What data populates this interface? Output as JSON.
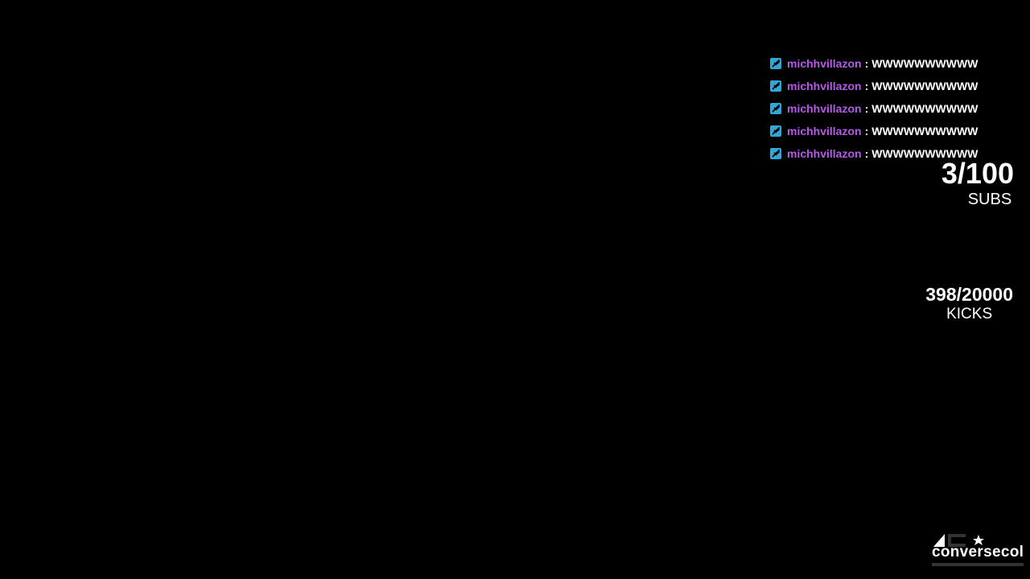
{
  "chat": {
    "messages": [
      {
        "user": "michhvillazon",
        "text": "WWWWWWWWWW",
        "badge": "moderator-sword-icon"
      },
      {
        "user": "michhvillazon",
        "text": "WWWWWWWWWW",
        "badge": "moderator-sword-icon"
      },
      {
        "user": "michhvillazon",
        "text": "WWWWWWWWWW",
        "badge": "moderator-sword-icon"
      },
      {
        "user": "michhvillazon",
        "text": "WWWWWWWWWW",
        "badge": "moderator-sword-icon"
      },
      {
        "user": "michhvillazon",
        "text": "WWWWWWWWWW",
        "badge": "moderator-sword-icon"
      }
    ],
    "separator": ":",
    "user_color": "#b45ae6",
    "badge_color": "#2ea8d8"
  },
  "subs_goal": {
    "value": "3/100",
    "label": "SUBS"
  },
  "kicks_goal": {
    "value": "398/20000",
    "label": "KICKS"
  },
  "logo": {
    "text": "conversecol"
  }
}
